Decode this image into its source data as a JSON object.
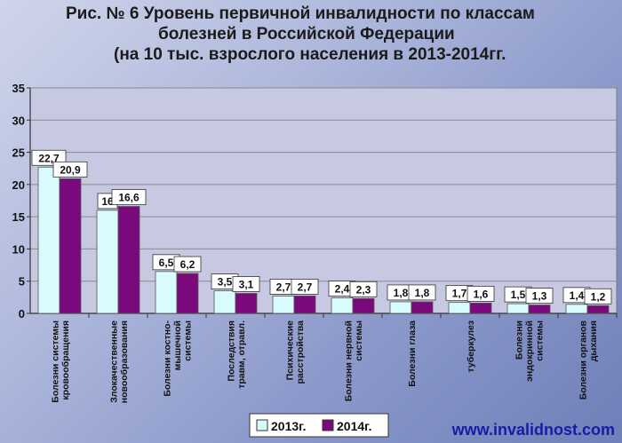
{
  "title": {
    "line1": "Рис. № 6   Уровень первичной инвалидности по классам",
    "line2": "болезней  в Российской Федерации",
    "line3": "(на 10 тыс. взрослого населения в 2013-2014гг."
  },
  "watermark": "www.invalidnost.com",
  "colors": {
    "s2013": "#d8fbfd",
    "s2014": "#7a0a7c",
    "plot_bg": "#c7c9e2"
  },
  "chart_data": {
    "type": "bar",
    "categories": [
      [
        "Болезни системы",
        "кровообращения"
      ],
      [
        "Злокачественные",
        "новообразования"
      ],
      [
        "Болезни костно-",
        "мышечной",
        "системы"
      ],
      [
        "Последствия",
        "травм, отравл."
      ],
      [
        "Психические",
        "расстройства"
      ],
      [
        "Болезни нервной",
        "системы"
      ],
      [
        "Болезни глаза"
      ],
      [
        "туберкулез"
      ],
      [
        "Болезни",
        "эндокринной",
        "системы"
      ],
      [
        "Болезни органов",
        "дыхания"
      ]
    ],
    "series": [
      {
        "name": "2013г.",
        "values": [
          22.7,
          16,
          6.5,
          3.5,
          2.7,
          2.4,
          1.8,
          1.7,
          1.5,
          1.4
        ],
        "labels": [
          "22,7",
          "16",
          "6,5",
          "3,5",
          "2,7",
          "2,4",
          "1,8",
          "1,7",
          "1,5",
          "1,4"
        ]
      },
      {
        "name": "2014г.",
        "values": [
          20.9,
          16.6,
          6.2,
          3.1,
          2.7,
          2.3,
          1.8,
          1.6,
          1.3,
          1.2
        ],
        "labels": [
          "20,9",
          "16,6",
          "6,2",
          "3,1",
          "2,7",
          "2,3",
          "1,8",
          "1,6",
          "1,3",
          "1,2"
        ]
      }
    ],
    "yticks": [
      "0",
      "5",
      "10",
      "15",
      "20",
      "25",
      "30",
      "35"
    ],
    "ylim": [
      0,
      35
    ],
    "grid": true,
    "legend": "bottom"
  }
}
